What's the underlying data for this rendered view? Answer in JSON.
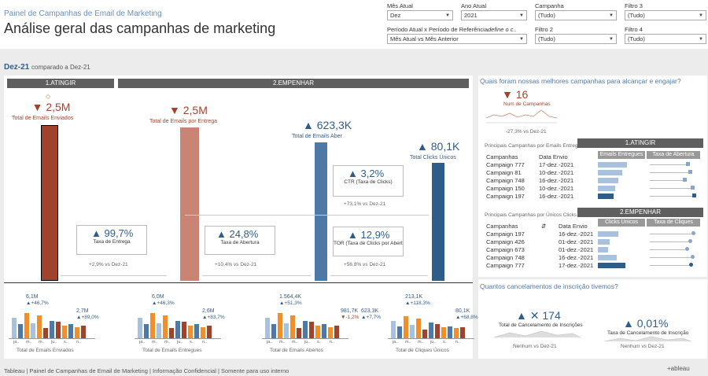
{
  "header": {
    "subtitle": "Painel de Campanhas de Email de Marketing",
    "title": "Análise geral das campanhas de marketing"
  },
  "filters": {
    "mes_atual": {
      "label": "Mês Atual",
      "value": "Dez"
    },
    "ano_atual": {
      "label": "Ano Atual",
      "value": "2021"
    },
    "campanha": {
      "label": "Campanha",
      "value": "(Tudo)"
    },
    "filtro3": {
      "label": "Filtro 3",
      "value": "(Tudo)"
    },
    "periodo": {
      "label": "Período Atual x Período de Referência",
      "note": "define o c..",
      "value": "Mês Atual vs Mês Anterior"
    },
    "filtro2": {
      "label": "Filtro 2",
      "value": "(Tudo)"
    },
    "filtro4": {
      "label": "Filtro 4",
      "value": "(Tudo)"
    }
  },
  "period": {
    "current": "Dez-21",
    "compare": "comparado a Dez-21"
  },
  "groups": {
    "atingir": "1.ATINGIR",
    "empenhar": "2.EMPENHAR"
  },
  "funnel": [
    {
      "arrow": "▼",
      "value": "2,5M",
      "label": "Total de Emails Enviados",
      "color": "#a0432c",
      "level": 0.82
    },
    {
      "arrow": "▼",
      "value": "2,5M",
      "label": "Total de Emails por Entrega",
      "color": "#c98474",
      "level": 0.82
    },
    {
      "arrow": "▲",
      "value": "623,3K",
      "label": "Total de Emails Aber",
      "color": "#4e79a7",
      "level": 0.72
    },
    {
      "arrow": "▲",
      "value": "80,1K",
      "label": "Total Clicks Únicos",
      "color": "#2e5d8a",
      "level": 0.6
    }
  ],
  "rates": [
    {
      "arrow": "▲",
      "value": "99,7%",
      "label": "Taxa de Entrega",
      "delta": "+2,9% vs Dez-21"
    },
    {
      "arrow": "▲",
      "value": "24,8%",
      "label": "Taxa de Abertura",
      "delta": "+10,4% vs Dez-21"
    },
    {
      "arrow": "▲",
      "value": "3,2%",
      "label": "CTR (Taxa de Clicks)",
      "delta": "+73,1% vs Dez-21"
    },
    {
      "arrow": "▲",
      "value": "12,9%",
      "label": "TOR (Taxa de Clicks por Abertura)",
      "delta": "+56,8% vs Dez-21"
    }
  ],
  "mini_charts": [
    {
      "name": "Total de Emails Enviados",
      "max": "6,1M",
      "maxd": "▲+46,7%",
      "cur": "2,7M",
      "curd": "▲+89,0%",
      "ticks": [
        "ja..",
        "m..",
        "m..",
        "ju..",
        "s..",
        "n.."
      ]
    },
    {
      "name": "Total de Emails Entregues",
      "max": "6,0M",
      "maxd": "▲+46,3%",
      "cur": "2,6M",
      "curd": "▲+83,7%",
      "ticks": [
        "ja..",
        "m..",
        "m..",
        "ju..",
        "s..",
        "n.."
      ]
    },
    {
      "name": "Total de Emails Abertos",
      "max": "1.564,4K",
      "maxd": "▲+51,3%",
      "cur": "981,7K",
      "curd": "▼-1,2%",
      "cur2": "623,3K",
      "cur2d": "▲+7,7%",
      "ticks": [
        "ja..",
        "m..",
        "m..",
        "ju..",
        "s..",
        "n.."
      ]
    },
    {
      "name": "Total de Cliques Únicos",
      "max": "213,1K",
      "maxd": "▲+118,3%",
      "cur": "80,1K",
      "curd": "▲+68,8%",
      "ticks": [
        "ja..",
        "m..",
        "m..",
        "ju..",
        "s..",
        "n.."
      ]
    }
  ],
  "best": {
    "title": "Quais foram nossas melhores campanhas para alcançar e engajar?",
    "count": "16",
    "count_label": "Num de Campanhas",
    "count_delta": "-27,3% vs Dez-21",
    "t1_caption": "Principais Campanhas por Emails Entreg",
    "t1_group": "1.ATINGIR",
    "t1_cols": [
      "Campanhas",
      "Data Envio",
      "Emails Entregues",
      "Taxa de Abertura"
    ],
    "t1_rows": [
      {
        "c": "Campaign 777",
        "d": "17-dez.-2021",
        "bar": 0.85,
        "rate": 0.82
      },
      {
        "c": "Campaign 81",
        "d": "10-dez.-2021",
        "bar": 0.7,
        "rate": 0.88
      },
      {
        "c": "Campaign 748",
        "d": "16-dez.-2021",
        "bar": 0.6,
        "rate": 0.75
      },
      {
        "c": "Campaign 150",
        "d": "10-dez.-2021",
        "bar": 0.5,
        "rate": 0.92
      },
      {
        "c": "Campaign 197",
        "d": "16-dez.-2021",
        "bar": 0.45,
        "rate": 0.97
      }
    ],
    "t2_caption": "Principais Campanhas por Únicos Clicks",
    "t2_group": "2.EMPENHAR",
    "t2_cols": [
      "Campanhas",
      "Data Envio",
      "Clicks Únicos",
      "Taxa de Cliques"
    ],
    "t2_rows": [
      {
        "c": "Campaign 197",
        "d": "16-dez.-2021",
        "bar": 0.6,
        "rate": 0.95
      },
      {
        "c": "Campaign 426",
        "d": "01-dez.-2021",
        "bar": 0.35,
        "rate": 0.88
      },
      {
        "c": "Campaign 673",
        "d": "01-dez.-2021",
        "bar": 0.3,
        "rate": 0.8
      },
      {
        "c": "Campaign 748",
        "d": "16-dez.-2021",
        "bar": 0.55,
        "rate": 0.92
      },
      {
        "c": "Campaign 777",
        "d": "17-dez.-2021",
        "bar": 0.8,
        "rate": 0.9
      }
    ]
  },
  "unsub": {
    "title": "Quantos cancelamentos de inscrição tivemos?",
    "count": "174",
    "count_label": "Total de Cancelamento de Inscrições",
    "count_delta": "Nenhum vs Dez-21",
    "rate": "0,01%",
    "rate_label": "Taxa de Cancelamento de Inscrição",
    "rate_delta": "Nenhum vs Dez-21"
  },
  "footer": {
    "text": "Tableau | Painel de Campanhas de Email de Marketing | Informação Confidencial | Somente para uso interno",
    "logo": "+ableau"
  }
}
